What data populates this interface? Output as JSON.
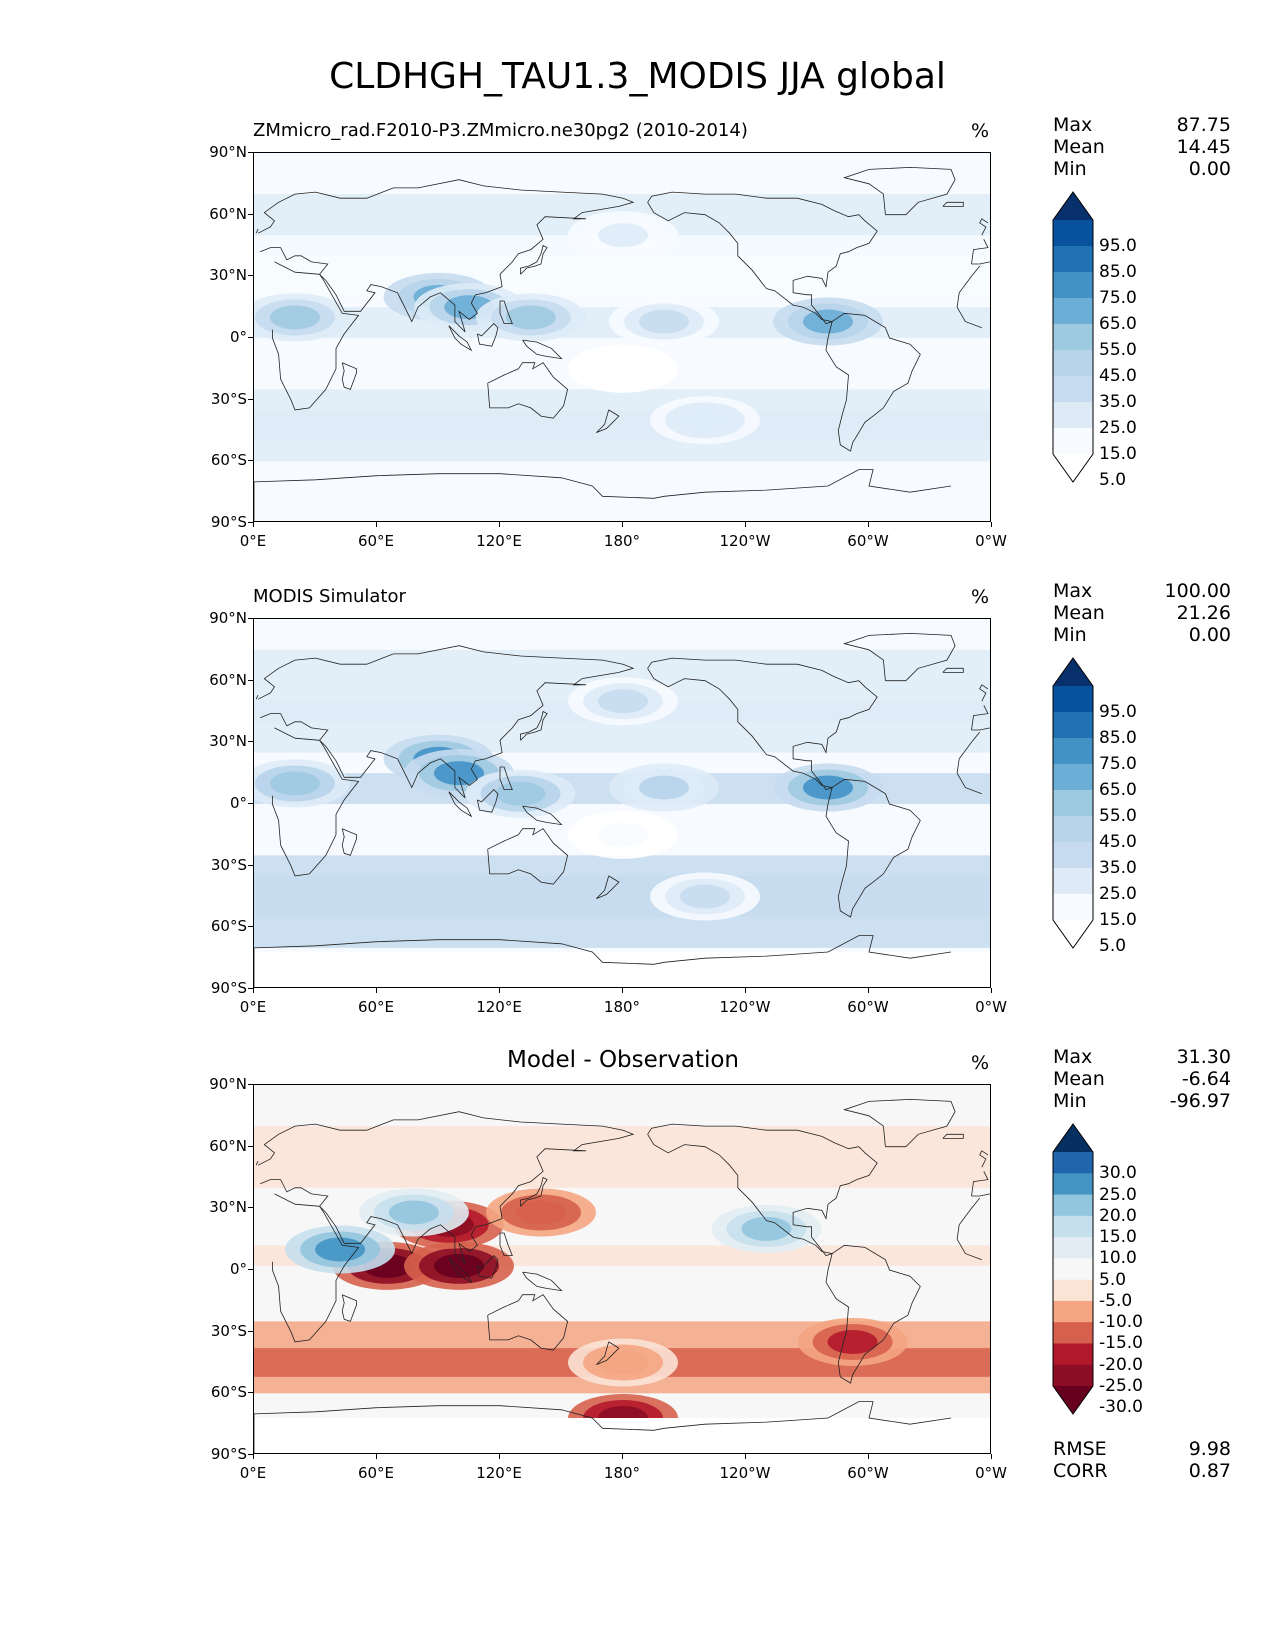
{
  "figure": {
    "title": "CLDHGH_TAU1.3_MODIS JJA global"
  },
  "axes": {
    "yticks": [
      "90°N",
      "60°N",
      "30°N",
      "0°",
      "30°S",
      "60°S",
      "90°S"
    ],
    "xticks": [
      "0°E",
      "60°E",
      "120°E",
      "180°",
      "120°W",
      "60°W",
      "0°W"
    ]
  },
  "panels": [
    {
      "title_left": "ZMmicro_rad.F2010-P3.ZMmicro.ne30pg2 (2010-2014)",
      "title_center": "",
      "unit": "%",
      "stats": [
        {
          "label": "Max",
          "value": "87.75"
        },
        {
          "label": "Mean",
          "value": "14.45"
        },
        {
          "label": "Min",
          "value": "0.00"
        }
      ],
      "colorbar": {
        "labels": [
          "95.0",
          "85.0",
          "75.0",
          "65.0",
          "55.0",
          "45.0",
          "35.0",
          "25.0",
          "15.0",
          "5.0"
        ],
        "colors": [
          "#08306b",
          "#08519c",
          "#2171b5",
          "#4292c6",
          "#6baed6",
          "#9ecae1",
          "#b7d4ea",
          "#c6dbef",
          "#deebf7",
          "#f7fbff",
          "#ffffff"
        ]
      }
    },
    {
      "title_left": "MODIS Simulator",
      "title_center": "",
      "unit": "%",
      "stats": [
        {
          "label": "Max",
          "value": "100.00"
        },
        {
          "label": "Mean",
          "value": "21.26"
        },
        {
          "label": "Min",
          "value": "0.00"
        }
      ],
      "colorbar": {
        "labels": [
          "95.0",
          "85.0",
          "75.0",
          "65.0",
          "55.0",
          "45.0",
          "35.0",
          "25.0",
          "15.0",
          "5.0"
        ],
        "colors": [
          "#08306b",
          "#08519c",
          "#2171b5",
          "#4292c6",
          "#6baed6",
          "#9ecae1",
          "#b7d4ea",
          "#c6dbef",
          "#deebf7",
          "#f7fbff",
          "#ffffff"
        ]
      }
    },
    {
      "title_left": "",
      "title_center": "Model - Observation",
      "unit": "%",
      "stats": [
        {
          "label": "Max",
          "value": "31.30"
        },
        {
          "label": "Mean",
          "value": "-6.64"
        },
        {
          "label": "Min",
          "value": "-96.97"
        }
      ],
      "colorbar": {
        "labels": [
          "30.0",
          "25.0",
          "20.0",
          "15.0",
          "10.0",
          "5.0",
          "-5.0",
          "-10.0",
          "-15.0",
          "-20.0",
          "-25.0",
          "-30.0"
        ],
        "colors": [
          "#053061",
          "#2166ac",
          "#4393c3",
          "#92c5de",
          "#c6dfed",
          "#e1edf3",
          "#f7f7f7",
          "#fbe3d6",
          "#f4a582",
          "#d6604d",
          "#b2182b",
          "#8c0d25",
          "#67001f"
        ]
      },
      "extra_stats": [
        {
          "label": "RMSE",
          "value": "9.98"
        },
        {
          "label": "CORR",
          "value": "0.87"
        }
      ]
    }
  ],
  "chart_data": [
    {
      "type": "heatmap",
      "title": "ZMmicro_rad.F2010-P3.ZMmicro.ne30pg2 (2010-2014)",
      "variable": "CLDHGH_TAU1.3_MODIS",
      "season": "JJA",
      "unit": "%",
      "xlim": [
        0,
        360
      ],
      "ylim": [
        -90,
        90
      ],
      "levels": [
        5,
        15,
        25,
        35,
        45,
        55,
        65,
        75,
        85,
        95
      ],
      "max": 87.75,
      "mean": 14.45,
      "min": 0.0,
      "features": [
        {
          "lon": 90,
          "lat": 20,
          "value": 60
        },
        {
          "lon": 105,
          "lat": 15,
          "value": 55
        },
        {
          "lon": 135,
          "lat": 10,
          "value": 45
        },
        {
          "lon": 20,
          "lat": 10,
          "value": 45
        },
        {
          "lon": 280,
          "lat": 8,
          "value": 60
        },
        {
          "lon": 200,
          "lat": 8,
          "value": 25
        },
        {
          "lon": 180,
          "lat": -15,
          "value": 3
        },
        {
          "lon": 220,
          "lat": -40,
          "value": 22
        },
        {
          "lon": 180,
          "lat": 50,
          "value": 20
        }
      ]
    },
    {
      "type": "heatmap",
      "title": "MODIS Simulator",
      "variable": "CLDHGH_TAU1.3_MODIS",
      "season": "JJA",
      "unit": "%",
      "xlim": [
        0,
        360
      ],
      "ylim": [
        -90,
        90
      ],
      "levels": [
        5,
        15,
        25,
        35,
        45,
        55,
        65,
        75,
        85,
        95
      ],
      "max": 100.0,
      "mean": 21.26,
      "min": 0.0,
      "features": [
        {
          "lon": 90,
          "lat": 22,
          "value": 70
        },
        {
          "lon": 100,
          "lat": 15,
          "value": 65
        },
        {
          "lon": 130,
          "lat": 5,
          "value": 50
        },
        {
          "lon": 20,
          "lat": 10,
          "value": 50
        },
        {
          "lon": 280,
          "lat": 8,
          "value": 65
        },
        {
          "lon": 200,
          "lat": 8,
          "value": 35
        },
        {
          "lon": 180,
          "lat": -15,
          "value": 5
        },
        {
          "lon": 220,
          "lat": -45,
          "value": 32
        },
        {
          "lon": 180,
          "lat": 50,
          "value": 25
        }
      ]
    },
    {
      "type": "heatmap",
      "title": "Model - Observation",
      "unit": "%",
      "xlim": [
        0,
        360
      ],
      "ylim": [
        -90,
        90
      ],
      "levels": [
        -30,
        -25,
        -20,
        -15,
        -10,
        -5,
        5,
        10,
        15,
        20,
        25,
        30
      ],
      "max": 31.3,
      "mean": -6.64,
      "min": -96.97,
      "rmse": 9.98,
      "corr": 0.87,
      "features": [
        {
          "lon": 65,
          "lat": 2,
          "value": -35
        },
        {
          "lon": 100,
          "lat": 2,
          "value": -35
        },
        {
          "lon": 95,
          "lat": 22,
          "value": -30
        },
        {
          "lon": 140,
          "lat": 28,
          "value": -20
        },
        {
          "lon": 78,
          "lat": 28,
          "value": 15
        },
        {
          "lon": 42,
          "lat": 10,
          "value": 20
        },
        {
          "lon": 250,
          "lat": 20,
          "value": 15
        },
        {
          "lon": 292,
          "lat": -35,
          "value": -25
        },
        {
          "lon": 180,
          "lat": -45,
          "value": -15
        },
        {
          "lon": 180,
          "lat": -72,
          "value": -30
        }
      ]
    }
  ]
}
